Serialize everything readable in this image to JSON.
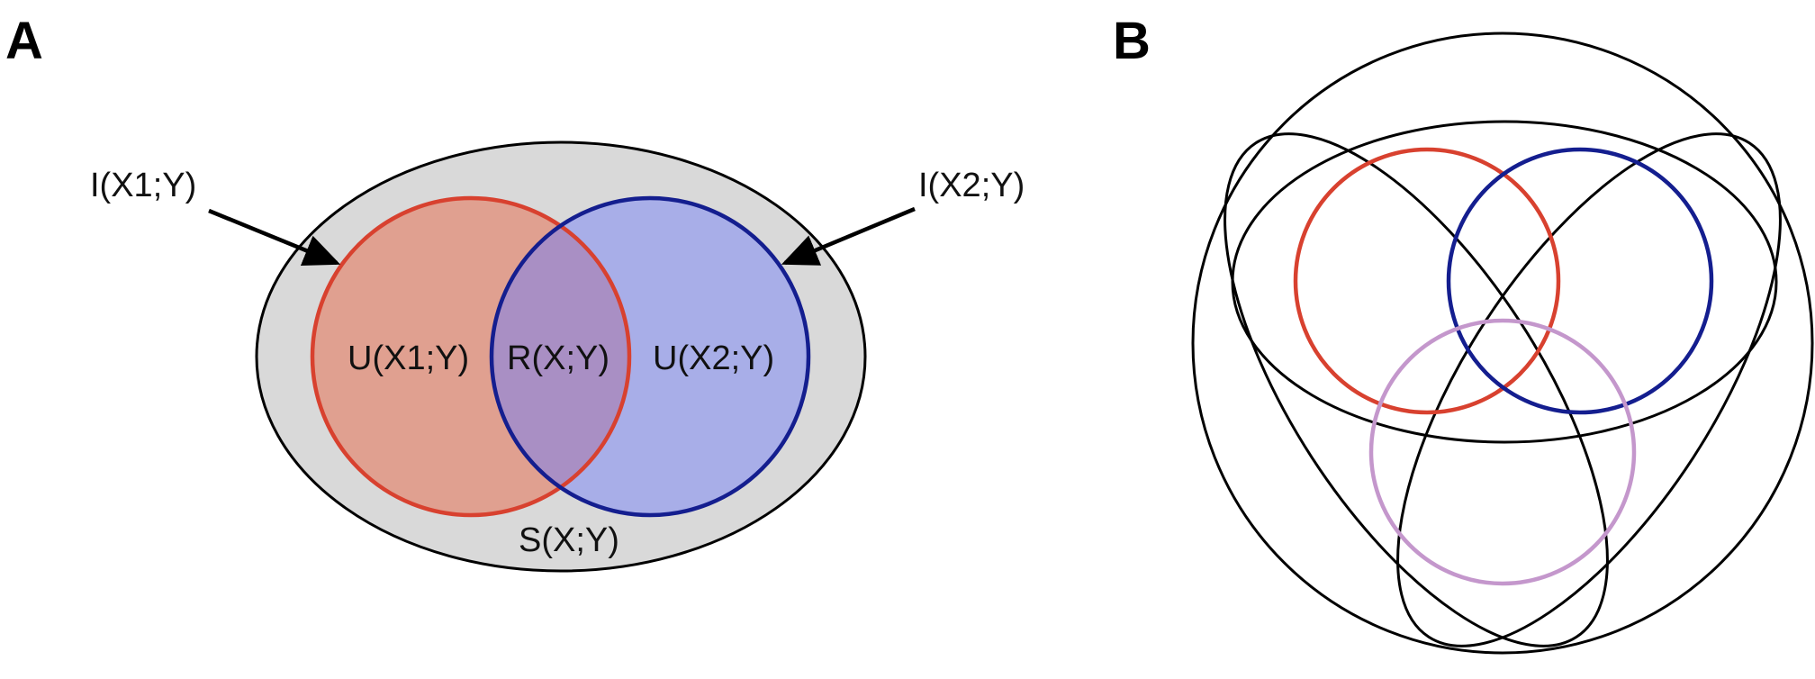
{
  "panel_a": {
    "letter": "A",
    "labels": {
      "i_x1_y": "I(X1;Y)",
      "i_x2_y": "I(X2;Y)",
      "u_x1_y": "U(X1;Y)",
      "r_x_y": "R(X;Y)",
      "u_x2_y": "U(X2;Y)",
      "s_x_y": "S(X;Y)"
    },
    "colors": {
      "outer_fill": "#d9d9d9",
      "x1_fill": "#e0a090",
      "x1_stroke": "#d8412f",
      "x2_fill": "#a8aee8",
      "x2_stroke": "#141e8f",
      "overlap_fill": "#a98fc4",
      "outline": "#000000"
    }
  },
  "panel_b": {
    "letter": "B",
    "colors": {
      "red_circle": "#d8412f",
      "blue_circle": "#141e8f",
      "purple_circle": "#c497cc",
      "outline": "#000000"
    }
  }
}
